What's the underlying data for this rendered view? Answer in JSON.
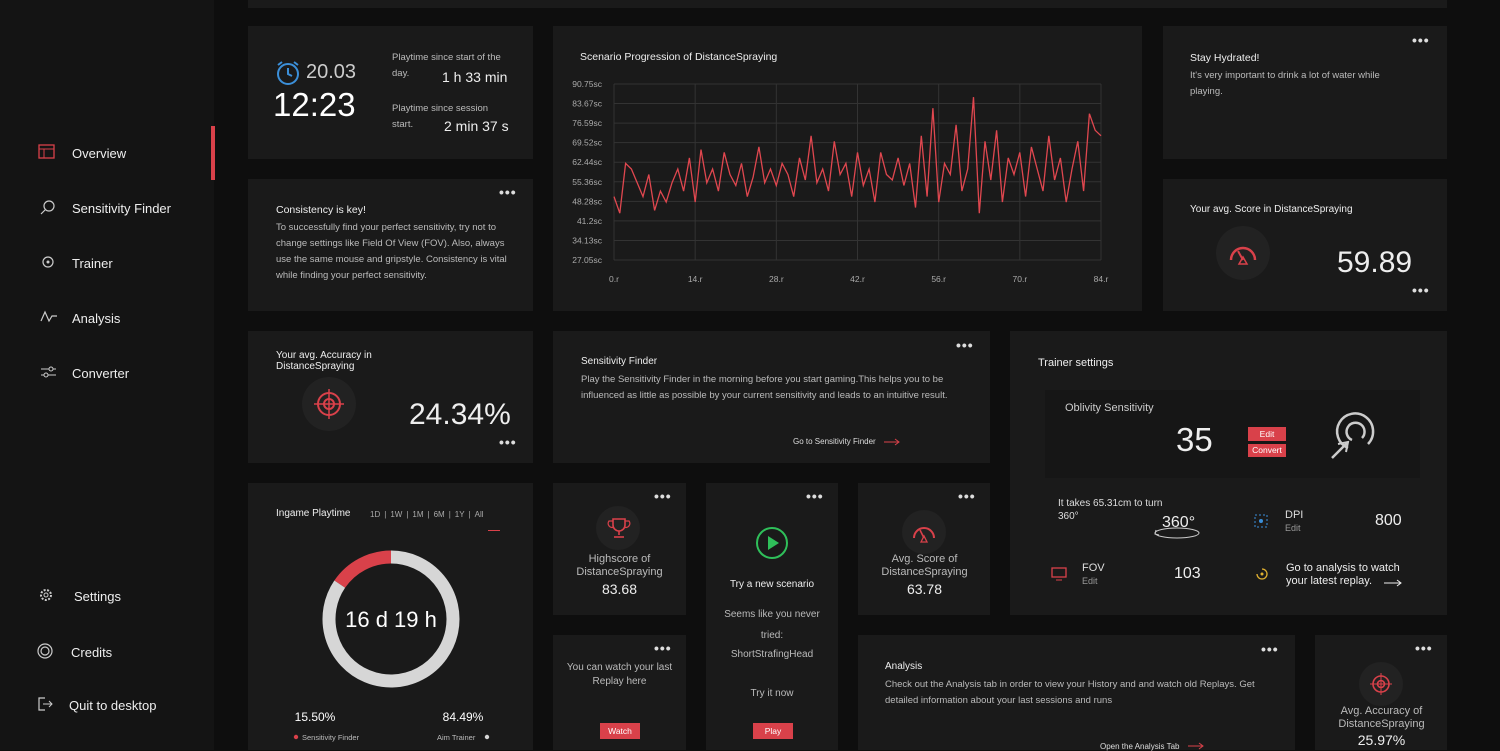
{
  "sidebar": {
    "nav": [
      "Overview",
      "Sensitivity Finder",
      "Trainer",
      "Analysis",
      "Converter"
    ],
    "bottom": [
      "Settings",
      "Credits",
      "Quit to desktop"
    ]
  },
  "clock": {
    "date": "20.03",
    "time": "12:23",
    "playtime_day_label": "Playtime since start of the day.",
    "playtime_day": "1 h 33 min",
    "playtime_session_label": "Playtime since session start.",
    "playtime_session": "2 min 37 s"
  },
  "consistency": {
    "title": "Consistency is key!",
    "text": "To successfully find your perfect sensitivity, try not to change settings like Field Of View (FOV). Also, always use the same mouse and gripstyle. Consistency is vital while finding your perfect sensitivity."
  },
  "hydrated": {
    "title": "Stay Hydrated!",
    "text": "It's very important to drink a lot of water while playing."
  },
  "avg_score": {
    "label": "Your avg. Score in DistanceSpraying",
    "value": "59.89"
  },
  "avg_accuracy": {
    "label": "Your avg. Accuracy in DistanceSpraying",
    "value": "24.34%"
  },
  "sens_finder": {
    "title": "Sensitivity Finder",
    "text": "Play the Sensitivity Finder in the morning before you start gaming.This helps you to be influenced as little as possible by your current sensitivity and leads to an intuitive result.",
    "link": "Go to Sensitivity Finder"
  },
  "trainer_settings": {
    "title": "Trainer settings",
    "game": "Oblivity Sensitivity",
    "sensitivity": "35",
    "edit": "Edit",
    "convert": "Convert",
    "cm360": "It takes 65.31cm to turn 360°",
    "cm360_icon": "360°",
    "dpi_label": "DPI",
    "dpi_edit": "Edit",
    "dpi": "800",
    "fov_label": "FOV",
    "fov_edit": "Edit",
    "fov": "103",
    "replay": "Go to analysis to watch your latest replay."
  },
  "highscore": {
    "label": "Highscore of DistanceSpraying",
    "value": "83.68"
  },
  "new_scenario": {
    "title": "Try a new scenario",
    "text": "Seems like you never tried:",
    "scenario": "ShortStrafingHead",
    "cta": "Try it now",
    "button": "Play"
  },
  "avg_score_small": {
    "label": "Avg. Score of DistanceSpraying",
    "value": "63.78"
  },
  "replay": {
    "text": "You can watch your last Replay here",
    "button": "Watch"
  },
  "analysis": {
    "title": "Analysis",
    "text": "Check out the Analysis tab in order to view your History and and watch old Replays. Get detailed information about your last sessions and runs",
    "link": "Open the Analysis Tab"
  },
  "accuracy_small": {
    "label": "Avg. Accuracy of DistanceSpraying",
    "value": "25.97%"
  },
  "chart_data": [
    {
      "type": "line",
      "title": "Scenario Progression of DistanceSpraying",
      "color": "#e0474f",
      "grid": true,
      "x": [
        0,
        1,
        2,
        3,
        4,
        5,
        6,
        7,
        8,
        9,
        10,
        11,
        12,
        13,
        14,
        15,
        16,
        17,
        18,
        19,
        20,
        21,
        22,
        23,
        24,
        25,
        26,
        27,
        28,
        29,
        30,
        31,
        32,
        33,
        34,
        35,
        36,
        37,
        38,
        39,
        40,
        41,
        42,
        43,
        44,
        45,
        46,
        47,
        48,
        49,
        50,
        51,
        52,
        53,
        54,
        55,
        56,
        57,
        58,
        59,
        60,
        61,
        62,
        63,
        64,
        65,
        66,
        67,
        68,
        69,
        70,
        71,
        72,
        73,
        74,
        75,
        76,
        77,
        78,
        79,
        80,
        81,
        82,
        83,
        84
      ],
      "values": [
        50,
        44,
        62,
        60,
        55,
        50,
        58,
        45,
        52,
        48,
        55,
        60,
        52,
        64,
        48,
        67,
        55,
        60,
        52,
        66,
        58,
        54,
        62,
        50,
        57,
        68,
        55,
        60,
        54,
        62,
        58,
        50,
        64,
        56,
        72,
        55,
        60,
        52,
        70,
        58,
        62,
        50,
        66,
        54,
        60,
        48,
        66,
        58,
        56,
        64,
        54,
        62,
        46,
        72,
        50,
        82,
        48,
        62,
        58,
        76,
        52,
        60,
        86,
        44,
        70,
        56,
        74,
        48,
        64,
        58,
        66,
        50,
        68,
        60,
        52,
        72,
        56,
        64,
        48,
        60,
        70,
        52,
        80,
        74,
        72
      ],
      "xlim": [
        0,
        84
      ],
      "xticks": [
        {
          "value": 0,
          "label": "0.r"
        },
        {
          "value": 14,
          "label": "14.r"
        },
        {
          "value": 28,
          "label": "28.r"
        },
        {
          "value": 42,
          "label": "42.r"
        },
        {
          "value": 56,
          "label": "56.r"
        },
        {
          "value": 70,
          "label": "70.r"
        },
        {
          "value": 84,
          "label": "84.r"
        }
      ],
      "ylim": [
        27.05,
        90.75
      ],
      "yticks": [
        {
          "value": 27.05,
          "label": "27.05sc"
        },
        {
          "value": 34.13,
          "label": "34.13sc"
        },
        {
          "value": 41.2,
          "label": "41.2sc"
        },
        {
          "value": 48.28,
          "label": "48.28sc"
        },
        {
          "value": 55.36,
          "label": "55.36sc"
        },
        {
          "value": 62.44,
          "label": "62.44sc"
        },
        {
          "value": 69.52,
          "label": "69.52sc"
        },
        {
          "value": 76.59,
          "label": "76.59sc"
        },
        {
          "value": 83.67,
          "label": "83.67sc"
        },
        {
          "value": 90.75,
          "label": "90.75sc"
        }
      ]
    },
    {
      "type": "pie",
      "title": "Ingame Playtime",
      "center_label": "16 d 19 h",
      "ranges": [
        "1D",
        "1W",
        "1M",
        "6M",
        "1Y",
        "All"
      ],
      "categories": [
        "Sensitivity Finder",
        "Aim Trainer"
      ],
      "values": [
        15.5,
        84.49
      ],
      "value_labels": [
        "15.50%",
        "84.49%"
      ],
      "colors": [
        "#d9414a",
        "#d6d6d6"
      ]
    }
  ]
}
